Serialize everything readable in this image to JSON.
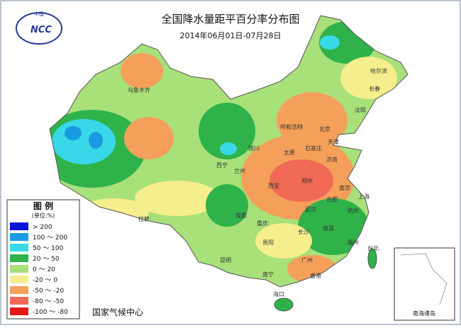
{
  "title": "全国降水量距平百分率分布图",
  "subtitle": "2014年06月01日-07月28日",
  "logo": {
    "top": "中国",
    "text": "NCC"
  },
  "legend": {
    "title": "图 例",
    "unit": "(单位:%)",
    "items": [
      {
        "label": "> 200",
        "color": "#0a14d8"
      },
      {
        "label": "100 ～ 200",
        "color": "#1a9be0"
      },
      {
        "label": "50 ～ 100",
        "color": "#38d8e8"
      },
      {
        "label": "20 ～ 50",
        "color": "#2fb24a"
      },
      {
        "label": "0 ～ 20",
        "color": "#a8e07a"
      },
      {
        "label": "-20 ～ 0",
        "color": "#f5ee8c"
      },
      {
        "label": "-50 ～ -20",
        "color": "#f5a05a"
      },
      {
        "label": "-80 ～ -50",
        "color": "#f06a55"
      },
      {
        "label": "-100 ～ -80",
        "color": "#e21a1a"
      }
    ]
  },
  "footer": "国家气候中心",
  "inset_label": "南海诸岛",
  "cities": [
    "乌鲁木齐",
    "拉萨",
    "西宁",
    "兰州",
    "银川",
    "呼和浩特",
    "北京",
    "天津",
    "石家庄",
    "太原",
    "济南",
    "郑州",
    "西安",
    "成都",
    "重庆",
    "武汉",
    "合肥",
    "南京",
    "上海",
    "杭州",
    "长沙",
    "南昌",
    "贵阳",
    "昆明",
    "南宁",
    "广州",
    "香港",
    "福州",
    "台北",
    "海口",
    "沈阳",
    "长春",
    "哈尔滨"
  ]
}
